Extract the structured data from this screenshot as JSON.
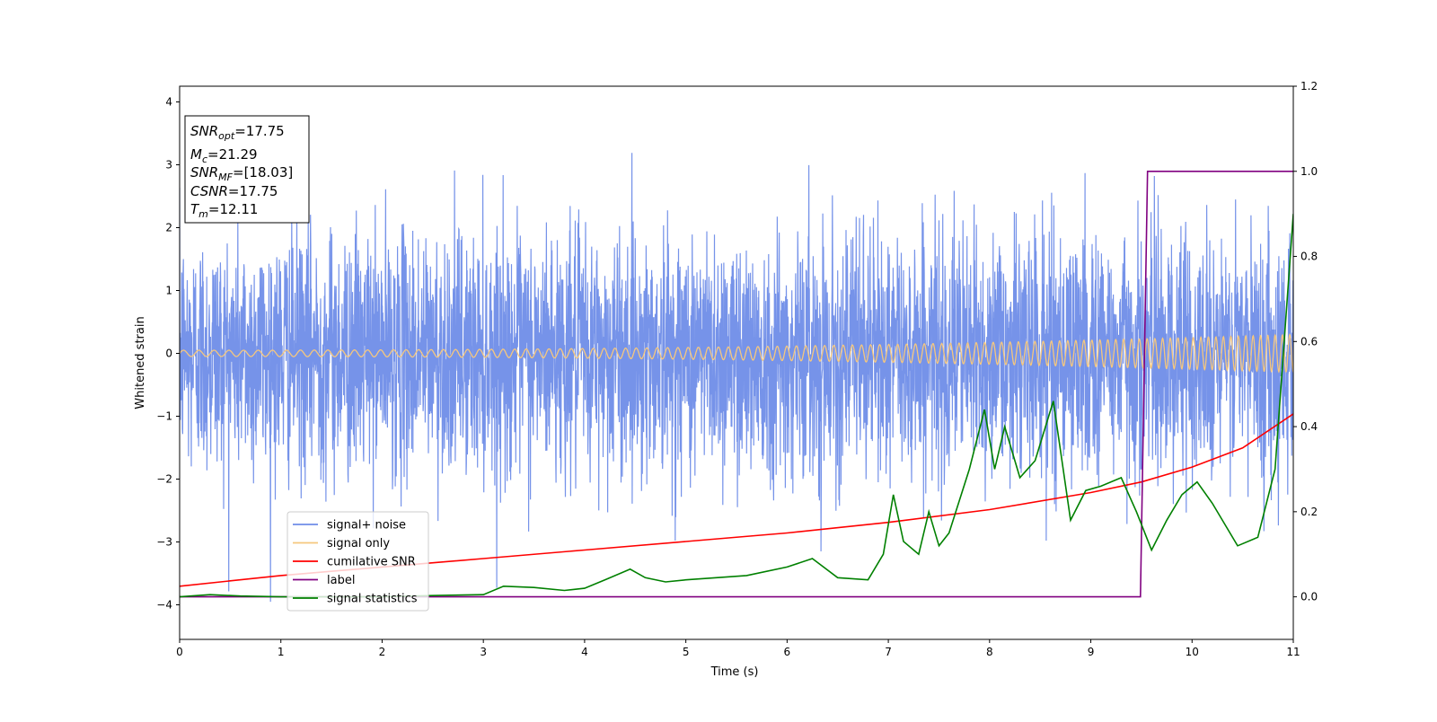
{
  "chart_data": {
    "type": "line",
    "title": "",
    "xlabel": "Time (s)",
    "ylabel": "Whitened strain",
    "xlim": [
      0,
      11
    ],
    "ylim": [
      -4.55,
      4.25
    ],
    "y2lim": [
      -0.1,
      1.2
    ],
    "grid": false,
    "legend_position": "lower-left",
    "x_ticks": [
      "0",
      "1",
      "2",
      "3",
      "4",
      "5",
      "6",
      "7",
      "8",
      "9",
      "10",
      "11"
    ],
    "y_ticks": [
      "4",
      "3",
      "2",
      "1",
      "0",
      "−1",
      "−2",
      "−3",
      "−4"
    ],
    "y2_ticks": [
      "1.2",
      "1.0",
      "0.8",
      "0.6",
      "0.4",
      "0.2",
      "0.0"
    ],
    "annotation": {
      "snr_opt": {
        "prefix": "SNR",
        "sub": "opt",
        "value": "=17.75"
      },
      "mc": {
        "prefix": "M",
        "sub": "c",
        "value": "=21.29"
      },
      "snr_mf": {
        "prefix": "SNR",
        "sub": "MF",
        "value": "=[18.03]"
      },
      "csnr": {
        "prefix": "CSNR",
        "sub": "",
        "value": "=17.75"
      },
      "tm": {
        "prefix": "T",
        "sub": "m",
        "value": "=12.11"
      }
    },
    "series": [
      {
        "name": "signal+ noise",
        "color": "#6f8de8",
        "axis": "left",
        "noise_std": 0.95,
        "x_range": [
          0,
          11
        ],
        "approx_min": -4.2,
        "approx_max": 3.85
      },
      {
        "name": "signal only",
        "color": "#f5c77e",
        "axis": "left",
        "start_amplitude": 0.05,
        "end_amplitude": 0.3,
        "start_frequency_hz": 6.5,
        "end_frequency_hz": 14
      },
      {
        "name": "cumilative SNR",
        "color": "#ff0000",
        "axis": "right",
        "x": [
          0,
          1,
          2,
          3,
          4,
          5,
          6,
          7,
          8,
          9,
          9.5,
          10,
          10.5,
          11
        ],
        "values": [
          0.025,
          0.05,
          0.07,
          0.09,
          0.11,
          0.13,
          0.15,
          0.175,
          0.205,
          0.245,
          0.27,
          0.305,
          0.35,
          0.43
        ]
      },
      {
        "name": "label",
        "color": "#800080",
        "axis": "right",
        "x": [
          0,
          9.49,
          9.56,
          11
        ],
        "values": [
          0,
          0,
          1,
          1
        ]
      },
      {
        "name": "signal statistics",
        "color": "#008000",
        "axis": "right",
        "x": [
          0,
          0.3,
          0.6,
          1,
          1.5,
          2,
          2.5,
          3,
          3.2,
          3.5,
          3.8,
          4,
          4.2,
          4.45,
          4.6,
          4.8,
          5,
          5.3,
          5.6,
          6,
          6.25,
          6.5,
          6.8,
          6.95,
          7.05,
          7.15,
          7.3,
          7.4,
          7.5,
          7.6,
          7.8,
          7.95,
          8.05,
          8.15,
          8.3,
          8.45,
          8.63,
          8.8,
          8.95,
          9.1,
          9.3,
          9.45,
          9.6,
          9.75,
          9.9,
          10.05,
          10.2,
          10.45,
          10.65,
          10.82,
          11
        ],
        "values": [
          0.0,
          0.005,
          0.002,
          0.0,
          0.0,
          0.0,
          0.003,
          0.005,
          0.025,
          0.022,
          0.015,
          0.02,
          0.04,
          0.065,
          0.045,
          0.035,
          0.04,
          0.045,
          0.05,
          0.07,
          0.09,
          0.045,
          0.04,
          0.1,
          0.24,
          0.13,
          0.1,
          0.2,
          0.12,
          0.15,
          0.3,
          0.44,
          0.3,
          0.4,
          0.28,
          0.32,
          0.46,
          0.18,
          0.25,
          0.26,
          0.28,
          0.2,
          0.11,
          0.18,
          0.24,
          0.27,
          0.22,
          0.12,
          0.14,
          0.3,
          0.9
        ]
      }
    ]
  }
}
